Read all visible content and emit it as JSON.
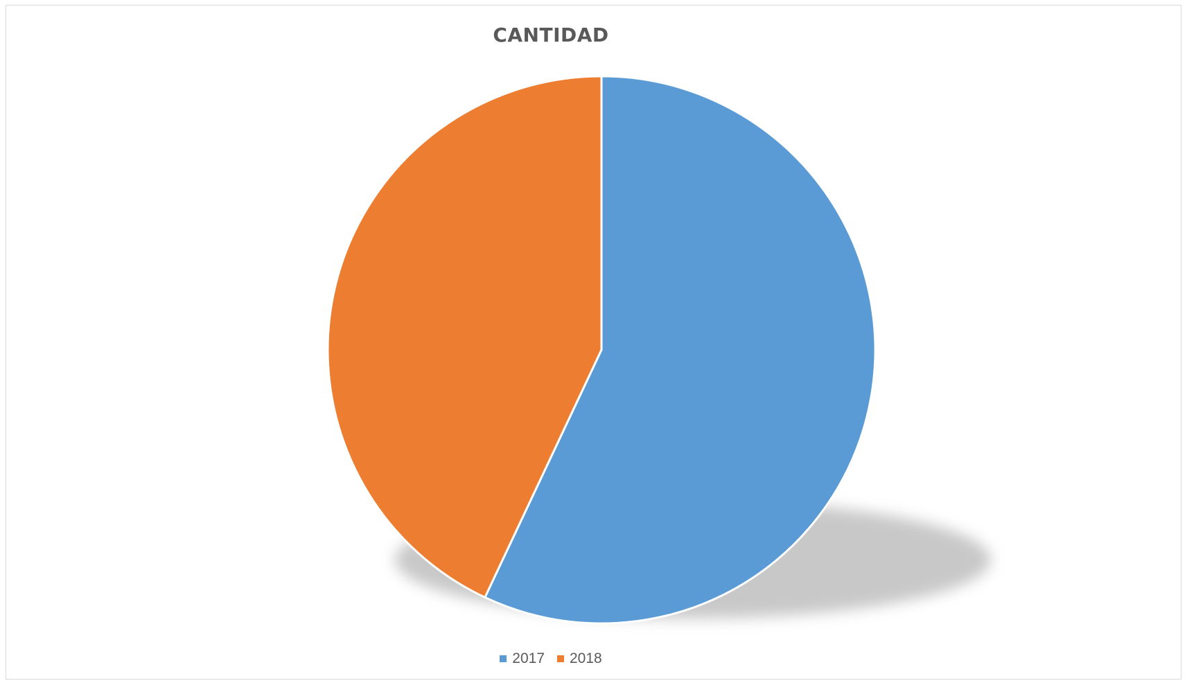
{
  "chart_data": {
    "type": "pie",
    "title": "CANTIDAD",
    "categories": [
      "2017",
      "2018"
    ],
    "values": [
      57,
      43
    ],
    "colors": [
      "#5b9bd5",
      "#ed7d31"
    ],
    "legend_position": "bottom",
    "shadow": true
  }
}
